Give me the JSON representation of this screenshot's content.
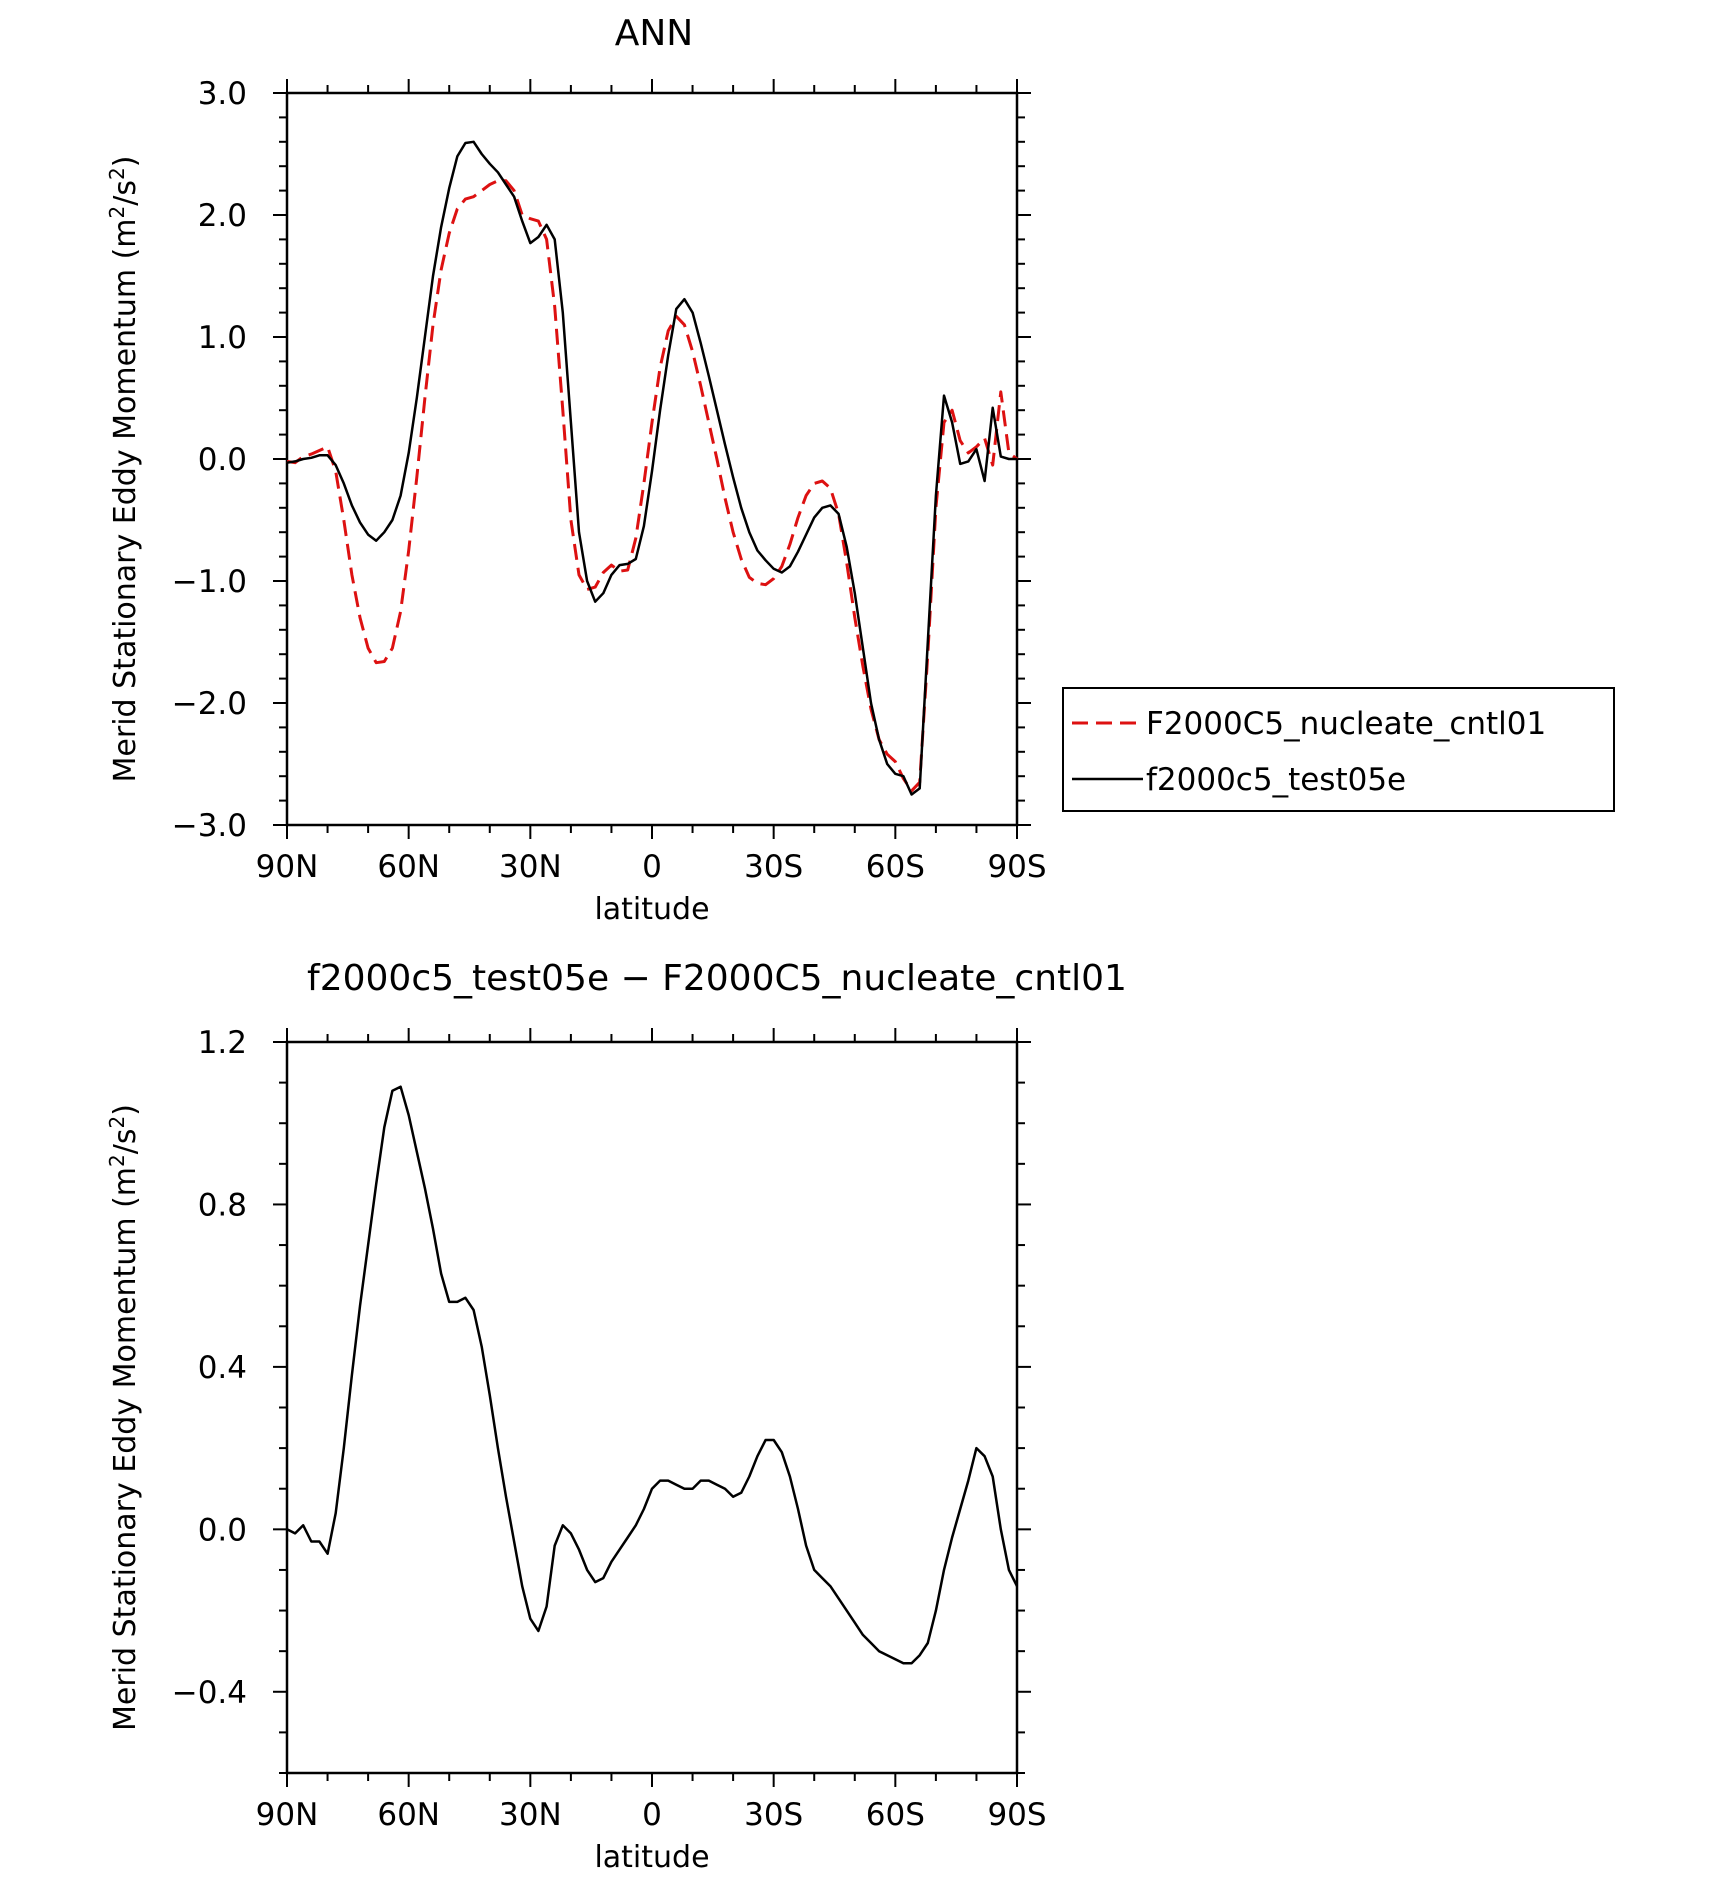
{
  "chart_data": [
    {
      "type": "line",
      "title": "ANN",
      "xlabel": "latitude",
      "ylabel": "Merid Stationary Eddy Momentum (m²/s²)",
      "ylabel_parts": [
        "Merid Stationary Eddy Momentum (m",
        "2",
        "/s",
        "2",
        ")"
      ],
      "xlim": [
        90,
        -90
      ],
      "ylim": [
        -3.0,
        3.0
      ],
      "x_ticks": [
        90,
        60,
        30,
        0,
        -30,
        -60,
        -90
      ],
      "x_tick_labels": [
        "90N",
        "60N",
        "30N",
        "0",
        "30S",
        "60S",
        "90S"
      ],
      "y_ticks": [
        3.0,
        2.0,
        1.0,
        0.0,
        -1.0,
        -2.0,
        -3.0
      ],
      "y_tick_labels": [
        "3.0",
        "2.0",
        "1.0",
        "0.0",
        "−1.0",
        "−2.0",
        "−3.0"
      ],
      "grid": false,
      "legend": "right-outside",
      "series": [
        {
          "name": "F2000C5_nucleate_cntl01",
          "color": "#dd1111",
          "dash": true,
          "x": [
            90,
            88,
            86,
            84,
            82,
            80,
            78,
            76,
            74,
            72,
            70,
            68,
            66,
            64,
            62,
            60,
            58,
            56,
            54,
            52,
            50,
            48,
            46,
            44,
            42,
            40,
            38,
            36,
            34,
            32,
            30,
            28,
            26,
            24,
            22,
            20,
            18,
            16,
            14,
            12,
            10,
            8,
            6,
            4,
            2,
            0,
            -2,
            -4,
            -6,
            -8,
            -10,
            -12,
            -14,
            -16,
            -18,
            -20,
            -22,
            -24,
            -26,
            -28,
            -30,
            -32,
            -34,
            -36,
            -38,
            -40,
            -42,
            -44,
            -46,
            -48,
            -50,
            -52,
            -54,
            -56,
            -58,
            -60,
            -62,
            -64,
            -66,
            -68,
            -70,
            -72,
            -74,
            -76,
            -78,
            -80,
            -82,
            -84,
            -86,
            -88,
            -90
          ],
          "y": [
            -0.02,
            -0.03,
            0.02,
            0.04,
            0.07,
            0.1,
            -0.1,
            -0.5,
            -0.95,
            -1.3,
            -1.55,
            -1.67,
            -1.66,
            -1.55,
            -1.25,
            -0.75,
            -0.15,
            0.5,
            1.1,
            1.55,
            1.85,
            2.05,
            2.13,
            2.15,
            2.2,
            2.25,
            2.28,
            2.28,
            2.2,
            2.0,
            1.97,
            1.95,
            1.8,
            1.25,
            0.4,
            -0.5,
            -0.95,
            -1.07,
            -1.05,
            -0.93,
            -0.87,
            -0.92,
            -0.91,
            -0.65,
            -0.2,
            0.3,
            0.75,
            1.05,
            1.17,
            1.1,
            0.88,
            0.6,
            0.3,
            0.0,
            -0.32,
            -0.6,
            -0.82,
            -0.97,
            -1.02,
            -1.03,
            -0.98,
            -0.88,
            -0.7,
            -0.48,
            -0.3,
            -0.2,
            -0.18,
            -0.24,
            -0.45,
            -0.85,
            -1.3,
            -1.7,
            -2.05,
            -2.3,
            -2.42,
            -2.48,
            -2.62,
            -2.72,
            -2.65,
            -1.6,
            -0.4,
            0.3,
            0.4,
            0.15,
            0.05,
            0.1,
            0.17,
            -0.05,
            0.55,
            0.05,
            0.0
          ]
        },
        {
          "name": "f2000c5_test05e",
          "color": "#000000",
          "dash": false,
          "x": [
            90,
            88,
            86,
            84,
            82,
            80,
            78,
            76,
            74,
            72,
            70,
            68,
            66,
            64,
            62,
            60,
            58,
            56,
            54,
            52,
            50,
            48,
            46,
            44,
            42,
            40,
            38,
            36,
            34,
            32,
            30,
            28,
            26,
            24,
            22,
            20,
            18,
            16,
            14,
            12,
            10,
            8,
            6,
            4,
            2,
            0,
            -2,
            -4,
            -6,
            -8,
            -10,
            -12,
            -14,
            -16,
            -18,
            -20,
            -22,
            -24,
            -26,
            -28,
            -30,
            -32,
            -34,
            -36,
            -38,
            -40,
            -42,
            -44,
            -46,
            -48,
            -50,
            -52,
            -54,
            -56,
            -58,
            -60,
            -62,
            -64,
            -66,
            -68,
            -70,
            -72,
            -74,
            -76,
            -78,
            -80,
            -82,
            -84,
            -86,
            -88,
            -90
          ],
          "y": [
            -0.03,
            -0.02,
            0.0,
            0.01,
            0.03,
            0.03,
            -0.05,
            -0.2,
            -0.38,
            -0.52,
            -0.62,
            -0.67,
            -0.6,
            -0.5,
            -0.3,
            0.05,
            0.5,
            1.0,
            1.5,
            1.9,
            2.22,
            2.48,
            2.59,
            2.6,
            2.5,
            2.42,
            2.35,
            2.25,
            2.15,
            1.95,
            1.77,
            1.82,
            1.92,
            1.8,
            1.2,
            0.3,
            -0.6,
            -1.0,
            -1.17,
            -1.1,
            -0.95,
            -0.87,
            -0.86,
            -0.82,
            -0.55,
            -0.1,
            0.4,
            0.85,
            1.23,
            1.31,
            1.2,
            0.95,
            0.68,
            0.4,
            0.12,
            -0.15,
            -0.4,
            -0.6,
            -0.75,
            -0.83,
            -0.9,
            -0.93,
            -0.88,
            -0.76,
            -0.62,
            -0.48,
            -0.4,
            -0.38,
            -0.45,
            -0.72,
            -1.1,
            -1.55,
            -2.0,
            -2.3,
            -2.5,
            -2.58,
            -2.6,
            -2.75,
            -2.7,
            -1.5,
            -0.3,
            0.52,
            0.3,
            -0.04,
            -0.02,
            0.08,
            -0.18,
            0.42,
            0.02,
            0.0,
            0.0
          ]
        }
      ]
    },
    {
      "type": "line",
      "title": "f2000c5_test05e − F2000C5_nucleate_cntl01",
      "xlabel": "latitude",
      "ylabel": "Merid Stationary Eddy Momentum (m²/s²)",
      "ylabel_parts": [
        "Merid Stationary Eddy Momentum (m",
        "2",
        "/s",
        "2",
        ")"
      ],
      "xlim": [
        90,
        -90
      ],
      "ylim": [
        -0.6,
        1.2
      ],
      "x_ticks": [
        90,
        60,
        30,
        0,
        -30,
        -60,
        -90
      ],
      "x_tick_labels": [
        "90N",
        "60N",
        "30N",
        "0",
        "30S",
        "60S",
        "90S"
      ],
      "y_ticks": [
        1.2,
        0.8,
        0.4,
        0.0,
        -0.4
      ],
      "y_tick_labels": [
        "1.2",
        "0.8",
        "0.4",
        "0.0",
        "−0.4"
      ],
      "grid": false,
      "series": [
        {
          "color": "#000000",
          "dash": false,
          "x": [
            90,
            88,
            86,
            84,
            82,
            80,
            78,
            76,
            74,
            72,
            70,
            68,
            66,
            64,
            62,
            60,
            58,
            56,
            54,
            52,
            50,
            48,
            46,
            44,
            42,
            40,
            38,
            36,
            34,
            32,
            30,
            28,
            26,
            24,
            22,
            20,
            18,
            16,
            14,
            12,
            10,
            8,
            6,
            4,
            2,
            0,
            -2,
            -4,
            -6,
            -8,
            -10,
            -12,
            -14,
            -16,
            -18,
            -20,
            -22,
            -24,
            -26,
            -28,
            -30,
            -32,
            -34,
            -36,
            -38,
            -40,
            -42,
            -44,
            -46,
            -48,
            -50,
            -52,
            -54,
            -56,
            -58,
            -60,
            -62,
            -64,
            -66,
            -68,
            -70,
            -72,
            -74,
            -76,
            -78,
            -80,
            -82,
            -84,
            -86,
            -88,
            -90
          ],
          "y": [
            0.0,
            -0.01,
            0.01,
            -0.03,
            -0.03,
            -0.06,
            0.04,
            0.2,
            0.38,
            0.55,
            0.7,
            0.85,
            0.99,
            1.08,
            1.09,
            1.02,
            0.93,
            0.84,
            0.74,
            0.63,
            0.56,
            0.56,
            0.57,
            0.54,
            0.45,
            0.33,
            0.2,
            0.08,
            -0.03,
            -0.14,
            -0.22,
            -0.25,
            -0.19,
            -0.04,
            0.01,
            -0.01,
            -0.05,
            -0.1,
            -0.13,
            -0.12,
            -0.08,
            -0.05,
            -0.02,
            0.01,
            0.05,
            0.1,
            0.12,
            0.12,
            0.11,
            0.1,
            0.1,
            0.12,
            0.12,
            0.11,
            0.1,
            0.08,
            0.09,
            0.13,
            0.18,
            0.22,
            0.22,
            0.19,
            0.13,
            0.05,
            -0.04,
            -0.1,
            -0.12,
            -0.14,
            -0.17,
            -0.2,
            -0.23,
            -0.26,
            -0.28,
            -0.3,
            -0.31,
            -0.32,
            -0.33,
            -0.33,
            -0.31,
            -0.28,
            -0.2,
            -0.1,
            -0.02,
            0.05,
            0.12,
            0.2,
            0.18,
            0.13,
            0.0,
            -0.1,
            -0.14
          ]
        }
      ]
    }
  ]
}
